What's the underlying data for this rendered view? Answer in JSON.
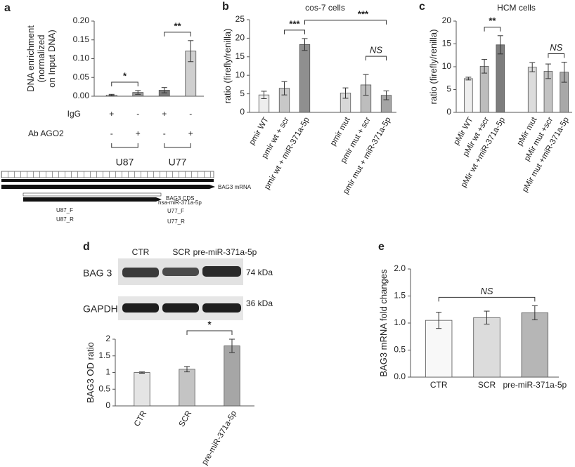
{
  "panel_labels": [
    "a",
    "b",
    "c",
    "d",
    "e"
  ],
  "gene_map": {
    "mrna": "BAG3 mRNA",
    "cds": "BAG3 CDS",
    "mirna": "hsa-miR-371a-5p",
    "primers": [
      "U87_F",
      "U87_R",
      "U77_F",
      "U77_R"
    ]
  },
  "blot": {
    "lanes": [
      "CTR",
      "SCR",
      "pre-miR-371a-5p"
    ],
    "bands": [
      {
        "name": "BAG 3",
        "size": "74 kDa"
      },
      {
        "name": "GAPDH",
        "size": "36 kDa"
      }
    ]
  },
  "chart_data": [
    {
      "type": "bar",
      "y_label": [
        "DNA enrichment",
        "(normalized",
        "on Input DNA)"
      ],
      "values": [
        0.003,
        0.01,
        0.016,
        0.12
      ],
      "errors": [
        0.002,
        0.005,
        0.007,
        0.028
      ],
      "colors": [
        "#f4f4f4",
        "#9a9a9a",
        "#7a7a7a",
        "#cfcfcf"
      ],
      "ylim": [
        0,
        0.2
      ],
      "yticks": [
        {
          "value": 0,
          "label": "0.00"
        },
        {
          "value": 0.05,
          "label": "0.05"
        },
        {
          "value": 0.1,
          "label": "0.10"
        },
        {
          "value": 0.15,
          "label": "0.15"
        },
        {
          "value": 0.2,
          "label": "0.20"
        }
      ],
      "rows": [
        {
          "name": "IgG",
          "values": [
            "+",
            "-",
            "+",
            "-"
          ]
        },
        {
          "name": "Ab AGO2",
          "values": [
            "-",
            "+",
            "-",
            "+"
          ]
        }
      ],
      "groups": [
        {
          "name": "U87",
          "from": 0,
          "to": 1
        },
        {
          "name": "U77",
          "from": 2,
          "to": 3
        }
      ],
      "significance": [
        {
          "from": 0,
          "to": 1,
          "label": "*"
        },
        {
          "from": 2,
          "to": 3,
          "label": "**"
        }
      ]
    },
    {
      "type": "bar",
      "title": "cos-7 cells",
      "y_label": [
        "ratio (firefly/renilla)"
      ],
      "categories": [
        "pmir WT",
        "pmir wt + scr",
        "pmir wt + miR-371a-5p",
        null,
        "pmir mut",
        "pmir mut + scr",
        "pmir mut + miR-371a-5p"
      ],
      "values": [
        4.7,
        6.5,
        18.3,
        null,
        5.2,
        7.4,
        4.6
      ],
      "errors": [
        1.0,
        1.8,
        1.6,
        null,
        1.4,
        2.8,
        1.2
      ],
      "colors": [
        "#eeeeee",
        "#c8c8c8",
        "#8f8f8f",
        null,
        "#d8d8d8",
        "#bdbdbd",
        "#a5a5a5"
      ],
      "ylim": [
        0,
        25
      ],
      "yticks": [
        0,
        5,
        10,
        15,
        20,
        25
      ],
      "significance": [
        {
          "from": 1,
          "to": 2,
          "label": "***"
        },
        {
          "from": 2,
          "to": 6,
          "label": "***"
        },
        {
          "from": 5,
          "to": 6,
          "label": "NS",
          "italic": true
        }
      ]
    },
    {
      "type": "bar",
      "title": "HCM cells",
      "y_label": [
        "ratio (firefly/renilla)"
      ],
      "categories": [
        "pMir WT",
        "pMir wt +scr",
        "pMir wt +miR-371a-5p",
        null,
        "pMir mut",
        "pMir mut +scr",
        "pMir mut +miR-371a-5p"
      ],
      "values": [
        7.4,
        10.1,
        14.8,
        null,
        9.9,
        9.0,
        8.8
      ],
      "errors": [
        0.3,
        1.5,
        2.0,
        null,
        1.0,
        1.6,
        2.2
      ],
      "colors": [
        "#eeeeee",
        "#bdbdbd",
        "#7d7d7d",
        null,
        "#dcdcdc",
        "#c2c2c2",
        "#a8a8a8"
      ],
      "ylim": [
        0,
        20
      ],
      "yticks": [
        0,
        5,
        10,
        15,
        20
      ],
      "significance": [
        {
          "from": 1,
          "to": 2,
          "label": "**"
        },
        {
          "from": 5,
          "to": 6,
          "label": "NS",
          "italic": true
        }
      ]
    },
    {
      "type": "bar",
      "y_label": [
        "BAG3 OD ratio"
      ],
      "categories": [
        "CTR",
        "SCR",
        "pre-miR-371a-5p"
      ],
      "values": [
        1.0,
        1.1,
        1.8
      ],
      "errors": [
        0.02,
        0.08,
        0.2
      ],
      "colors": [
        "#e4e4e4",
        "#c4c4c4",
        "#a6a6a6"
      ],
      "ylim": [
        0,
        2
      ],
      "yticks": [
        0,
        0.5,
        1,
        1.5,
        2
      ],
      "significance": [
        {
          "from": 1,
          "to": 2,
          "label": "*"
        }
      ]
    },
    {
      "type": "bar",
      "y_label": [
        "BAG3 mRNA fold changes"
      ],
      "categories": [
        "CTR",
        "SCR",
        "pre-miR-371a-5p"
      ],
      "values": [
        1.05,
        1.1,
        1.19
      ],
      "errors": [
        0.15,
        0.12,
        0.13
      ],
      "colors": [
        "#f8f8f8",
        "#dcdcdc",
        "#b6b6b6"
      ],
      "ylim": [
        0,
        2
      ],
      "yticks": [
        {
          "value": 0,
          "label": "0.0"
        },
        {
          "value": 0.5,
          "label": "0.5"
        },
        {
          "value": 1,
          "label": "1.0"
        },
        {
          "value": 1.5,
          "label": "1.5"
        },
        {
          "value": 2,
          "label": "2.0"
        }
      ],
      "significance": [
        {
          "from": 0,
          "to": 2,
          "label": "NS",
          "italic": true
        }
      ]
    }
  ]
}
